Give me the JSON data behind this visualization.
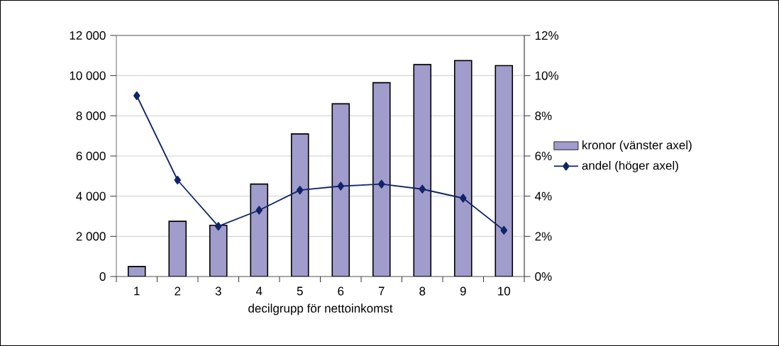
{
  "chart_data": {
    "type": "bar",
    "xlabel": "decilgrupp för nettoinkomst",
    "categories": [
      "1",
      "2",
      "3",
      "4",
      "5",
      "6",
      "7",
      "8",
      "9",
      "10"
    ],
    "series": [
      {
        "name": "kronor (vänster axel)",
        "color": "#a09ccb",
        "values": [
          500,
          2750,
          2550,
          4600,
          7100,
          8600,
          9650,
          10550,
          10750,
          10500
        ]
      },
      {
        "name": "andel (höger axel)",
        "type": "line",
        "axis": "y2",
        "color": "#102468",
        "values": [
          9.0,
          4.8,
          2.5,
          3.3,
          4.3,
          4.5,
          4.6,
          4.35,
          3.9,
          2.3
        ]
      }
    ],
    "ylim": [
      0,
      12000
    ],
    "yticks": [
      {
        "value": 0,
        "label": "0"
      },
      {
        "value": 2000,
        "label": "2 000"
      },
      {
        "value": 4000,
        "label": "4 000"
      },
      {
        "value": 6000,
        "label": "6 000"
      },
      {
        "value": 8000,
        "label": "8 000"
      },
      {
        "value": 10000,
        "label": "10 000"
      },
      {
        "value": 12000,
        "label": "12 000"
      }
    ],
    "y2lim": [
      0,
      12
    ],
    "y2ticks": [
      {
        "value": 0,
        "label": "0%"
      },
      {
        "value": 2,
        "label": "2%"
      },
      {
        "value": 4,
        "label": "4%"
      },
      {
        "value": 6,
        "label": "6%"
      },
      {
        "value": 8,
        "label": "8%"
      },
      {
        "value": 10,
        "label": "10%"
      },
      {
        "value": 12,
        "label": "12%"
      }
    ],
    "grid": "y",
    "legend": "right",
    "marker": "diamond",
    "line_style": "solid"
  }
}
